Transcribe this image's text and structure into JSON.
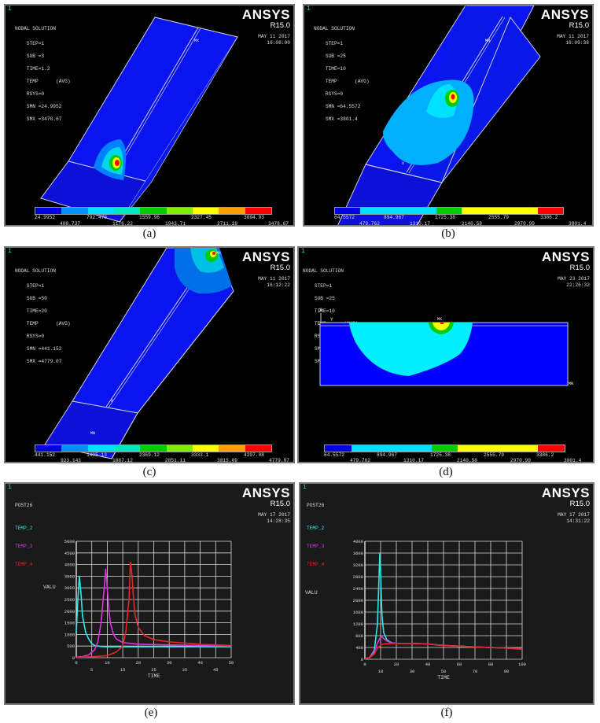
{
  "figure": {
    "captions": [
      "(a)",
      "(b)",
      "(c)",
      "(d)",
      "(e)",
      "(f)"
    ]
  },
  "panels": {
    "a": {
      "window_number": "1",
      "title": "NODAL SOLUTION",
      "info_lines": [
        "STEP=1",
        "SUB =3",
        "TIME=1.2",
        "TEMP      (AVG)",
        "RSYS=0",
        "SMN =24.9952",
        "SMX =3478.67"
      ],
      "brand": "ANSYS",
      "version": "R15.0",
      "date": "MAY 11 2017",
      "time": "16:08:00",
      "mx_label": "MX",
      "colorbar_values": [
        "24.9952",
        "408.737",
        "792.479",
        "1176.22",
        "1559.96",
        "1943.71",
        "2327.45",
        "2711.19",
        "3094.93",
        "3478.67"
      ]
    },
    "b": {
      "window_number": "1",
      "title": "NODAL SOLUTION",
      "info_lines": [
        "STEP=1",
        "SUB =25",
        "TIME=10",
        "TEMP      (AVG)",
        "RSYS=0",
        "SMN =64.5572",
        "SMX =3801.4"
      ],
      "brand": "ANSYS",
      "version": "R15.0",
      "date": "MAY 11 2017",
      "time": "16:09:38",
      "mx_label": "MN",
      "colorbar_values": [
        "64.5572",
        "479.762",
        "894.967",
        "1310.17",
        "1725.38",
        "2140.58",
        "2555.79",
        "2970.99",
        "3386.2",
        "3801.4"
      ]
    },
    "c": {
      "window_number": "1",
      "title": "NODAL SOLUTION",
      "info_lines": [
        "STEP=1",
        "SUB =50",
        "TIME=20",
        "TEMP      (AVG)",
        "RSYS=0",
        "SMN =441.152",
        "SMX =4779.07"
      ],
      "brand": "ANSYS",
      "version": "R15.0",
      "date": "MAY 11 2017",
      "time": "16:12:22",
      "mx_label": "MX",
      "mn_label": "MN",
      "colorbar_values": [
        "441.152",
        "923.143",
        "1405.13",
        "1887.12",
        "2369.12",
        "2851.11",
        "3333.1",
        "3815.09",
        "4297.08",
        "4779.07"
      ]
    },
    "d": {
      "window_number": "1",
      "title": "NODAL SOLUTION",
      "info_lines": [
        "STEP=1",
        "SUB =25",
        "TIME=10",
        "TEMP      (AVG)",
        "RSYS=0",
        "SMN =64.5572",
        "SMX =3801.4"
      ],
      "brand": "ANSYS",
      "version": "R15.0",
      "date": "MAY 23 2017",
      "time": "22:26:32",
      "mx_label": "MX",
      "mn_label": "MN",
      "axis_x": "X",
      "axis_y": "Y",
      "colorbar_values": [
        "64.5572",
        "479.762",
        "894.967",
        "1310.17",
        "1725.38",
        "2140.58",
        "2555.79",
        "2970.99",
        "3386.2",
        "3801.4"
      ]
    },
    "e": {
      "window_number": "1",
      "title": "POST26",
      "legend": [
        "TEMP_2",
        "TEMP_3",
        "TEMP_4"
      ],
      "brand": "ANSYS",
      "version": "R15.0",
      "date": "MAY 17 2017",
      "time": "14:28:35",
      "ylabel": "VALU",
      "xlabel": "TIME"
    },
    "f": {
      "window_number": "1",
      "title": "POST26",
      "legend": [
        "TEMP_2",
        "TEMP_3",
        "TEMP_4"
      ],
      "brand": "ANSYS",
      "version": "R15.0",
      "date": "MAY 17 2017",
      "time": "14:31:22",
      "ylabel": "VALU",
      "xlabel": "TIME"
    }
  },
  "colors": {
    "contour": [
      "#0000ff",
      "#0080ff",
      "#00e0ff",
      "#00e8c0",
      "#00cc00",
      "#80ff00",
      "#ffff00",
      "#ffa000",
      "#ff0000"
    ],
    "temp_2": "#33e6e6",
    "temp_3": "#e033e6",
    "temp_4": "#e62626"
  },
  "chart_data": [
    {
      "type": "line",
      "panel": "e",
      "title": "POST26",
      "xlabel": "TIME",
      "ylabel": "VALU",
      "xlim": [
        0,
        50
      ],
      "ylim": [
        0,
        5000
      ],
      "xticks": [
        0,
        5,
        10,
        15,
        20,
        25,
        30,
        35,
        40,
        45,
        50
      ],
      "yticks": [
        0,
        500,
        1000,
        1500,
        2000,
        2500,
        3000,
        3500,
        4000,
        4500,
        5000
      ],
      "grid": true,
      "legend_position": "top-left",
      "series": [
        {
          "name": "TEMP_2",
          "x": [
            0,
            0.5,
            1,
            1.5,
            2,
            3,
            4,
            5,
            6,
            8,
            10,
            15,
            20,
            30,
            40,
            50
          ],
          "values": [
            1100,
            2500,
            3500,
            2800,
            1800,
            1100,
            800,
            600,
            520,
            480,
            470,
            470,
            470,
            470,
            470,
            470
          ]
        },
        {
          "name": "TEMP_3",
          "x": [
            0,
            2,
            4,
            6,
            7,
            8,
            9,
            9.5,
            10,
            10.5,
            11,
            12,
            13,
            15,
            20,
            30,
            40,
            50
          ],
          "values": [
            30,
            50,
            120,
            350,
            700,
            1500,
            3000,
            3800,
            3000,
            2100,
            1500,
            1000,
            800,
            650,
            580,
            550,
            520,
            500
          ]
        },
        {
          "name": "TEMP_4",
          "x": [
            0,
            5,
            10,
            13,
            15,
            16,
            17,
            17.5,
            18,
            18.5,
            19,
            20,
            22,
            25,
            30,
            40,
            50
          ],
          "values": [
            20,
            40,
            90,
            250,
            500,
            1100,
            2500,
            4100,
            3500,
            2500,
            1800,
            1300,
            950,
            780,
            680,
            580,
            520
          ]
        }
      ]
    },
    {
      "type": "line",
      "panel": "f",
      "title": "POST26",
      "xlabel": "TIME",
      "ylabel": "VALU",
      "xlim": [
        0,
        100
      ],
      "ylim": [
        0,
        4000
      ],
      "xticks": [
        0,
        10,
        20,
        30,
        40,
        50,
        60,
        70,
        80,
        90,
        100
      ],
      "yticks": [
        0,
        400,
        800,
        1200,
        1600,
        2000,
        2400,
        2800,
        3200,
        3600,
        4000
      ],
      "grid": true,
      "legend_position": "top-left",
      "series": [
        {
          "name": "TEMP_2",
          "x": [
            0,
            3,
            6,
            8,
            9,
            9.5,
            10,
            10.5,
            11,
            12,
            14,
            17,
            20,
            30,
            40,
            50,
            70,
            90,
            100
          ],
          "values": [
            20,
            60,
            300,
            1200,
            2800,
            3600,
            3000,
            2000,
            1400,
            900,
            650,
            560,
            540,
            540,
            520,
            470,
            420,
            380,
            360
          ]
        },
        {
          "name": "TEMP_3",
          "x": [
            0,
            3,
            6,
            8,
            10,
            11,
            12,
            14,
            17,
            20,
            30,
            40,
            50,
            70,
            90,
            100
          ],
          "values": [
            20,
            60,
            250,
            550,
            750,
            760,
            700,
            620,
            560,
            540,
            540,
            520,
            470,
            420,
            380,
            360
          ]
        },
        {
          "name": "TEMP_4",
          "x": [
            0,
            3,
            6,
            8,
            10,
            12,
            15,
            20,
            30,
            40,
            50,
            70,
            90,
            100
          ],
          "values": [
            20,
            50,
            180,
            380,
            480,
            520,
            530,
            540,
            540,
            520,
            470,
            420,
            380,
            340
          ]
        }
      ]
    }
  ]
}
